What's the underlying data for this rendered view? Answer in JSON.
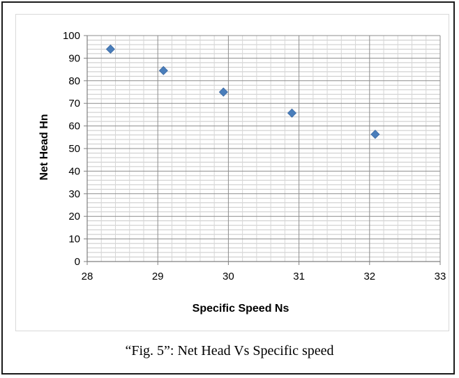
{
  "caption": "“Fig. 5”: Net Head Vs Specific speed",
  "chart_data": {
    "type": "scatter",
    "title": "",
    "xlabel": "Specific Speed Ns",
    "ylabel": "Net Head Hn",
    "xlim": [
      28,
      33
    ],
    "ylim": [
      0,
      100
    ],
    "x_ticks": [
      "28",
      "29",
      "30",
      "31",
      "32",
      "33"
    ],
    "y_ticks": [
      "0",
      "10",
      "20",
      "30",
      "40",
      "50",
      "60",
      "70",
      "80",
      "90",
      "100"
    ],
    "grid": true,
    "legend": "none",
    "marker_color": "#4a7ebb",
    "series": [
      {
        "x": [
          28.33,
          29.08,
          29.93,
          30.9,
          32.08
        ],
        "y": [
          94,
          84.5,
          75,
          65.7,
          56.3
        ]
      }
    ]
  }
}
